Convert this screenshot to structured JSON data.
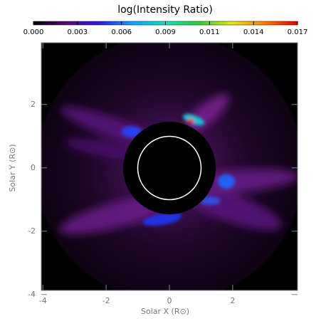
{
  "chart_data": {
    "type": "image",
    "title": "log(Intensity Ratio)",
    "colorbar": {
      "lim": [
        0,
        0.017
      ],
      "ticks": [
        {
          "value": 0,
          "label": "0.000"
        },
        {
          "value": 0.00283,
          "label": "0.003"
        },
        {
          "value": 0.00567,
          "label": "0.006"
        },
        {
          "value": 0.0085,
          "label": "0.009"
        },
        {
          "value": 0.01133,
          "label": "0.011"
        },
        {
          "value": 0.01417,
          "label": "0.014"
        },
        {
          "value": 0.017,
          "label": "0.017"
        }
      ],
      "colors": [
        "#000000",
        "#5a0a78",
        "#2a1ee0",
        "#14a0ff",
        "#18e0c0",
        "#30d030",
        "#e8e820",
        "#ff8000",
        "#e00000"
      ]
    },
    "xlabel": "Solar X (R⊙)",
    "ylabel": "Solar Y (R⊙)",
    "xlim": [
      -4.05,
      4.05
    ],
    "ylim": [
      -3.87,
      3.95
    ],
    "xticks": [
      -4,
      -2,
      0,
      2
    ],
    "yticks": [
      -4,
      -2,
      0,
      2
    ]
  }
}
